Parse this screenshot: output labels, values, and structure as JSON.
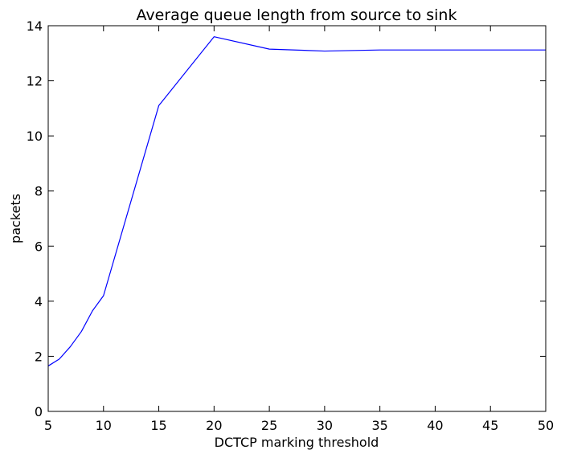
{
  "chart_data": {
    "type": "line",
    "title": "Average queue length from source to sink",
    "xlabel": "DCTCP marking threshold",
    "ylabel": "packets",
    "xlim": [
      5,
      50
    ],
    "ylim": [
      0,
      14
    ],
    "xticks": [
      5,
      10,
      15,
      20,
      25,
      30,
      35,
      40,
      45,
      50
    ],
    "yticks": [
      0,
      2,
      4,
      6,
      8,
      10,
      12,
      14
    ],
    "grid": false,
    "series": [
      {
        "color": "#0000ff",
        "x": [
          5,
          6,
          7,
          8,
          9,
          10,
          15,
          20,
          25,
          30,
          35,
          40,
          45,
          50
        ],
        "y": [
          1.65,
          1.9,
          2.35,
          2.9,
          3.65,
          4.2,
          11.1,
          13.6,
          13.15,
          13.08,
          13.12,
          13.12,
          13.12,
          13.12
        ]
      }
    ]
  }
}
